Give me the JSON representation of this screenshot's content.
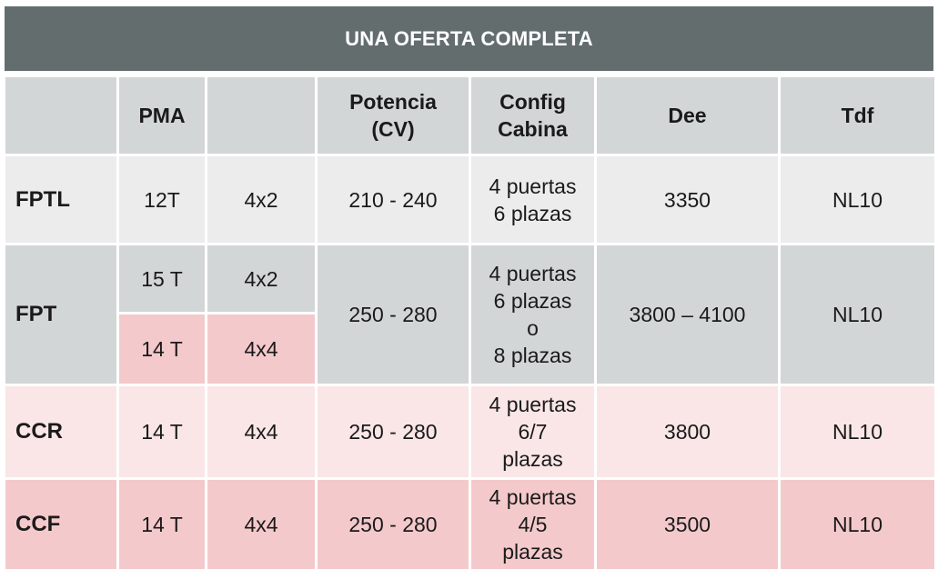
{
  "title": "UNA OFERTA COMPLETA",
  "headers": {
    "blank": "",
    "pma": "PMA",
    "traction": "",
    "potencia_line1": "Potencia",
    "potencia_line2": "(CV)",
    "config_line1": "Config",
    "config_line2": "Cabina",
    "dee": "Dee",
    "tdf": "Tdf"
  },
  "rows": {
    "fptl": {
      "name": "FPTL",
      "pma": "12T",
      "traction": "4x2",
      "potencia": "210 - 240",
      "config": [
        "4 puertas",
        "6 plazas"
      ],
      "dee": "3350",
      "tdf": "NL10"
    },
    "fpt": {
      "name": "FPT",
      "pma_a": "15 T",
      "traction_a": "4x2",
      "pma_b": "14 T",
      "traction_b": "4x4",
      "potencia": "250 - 280",
      "config": [
        "4 puertas",
        "6 plazas",
        "o",
        "8 plazas"
      ],
      "dee": "3800 – 4100",
      "tdf": "NL10"
    },
    "ccr": {
      "name": "CCR",
      "pma": "14 T",
      "traction": "4x4",
      "potencia": "250 - 280",
      "config": [
        "4 puertas",
        "6/7",
        "plazas"
      ],
      "dee": "3800",
      "tdf": "NL10"
    },
    "ccf": {
      "name": "CCF",
      "pma": "14 T",
      "traction": "4x4",
      "potencia": "250 - 280",
      "config": [
        "4 puertas",
        "4/5",
        "plazas"
      ],
      "dee": "3500",
      "tdf": "NL10"
    }
  },
  "colors": {
    "banner": "#636d6e",
    "header_gray": "#d3d6d6",
    "light_gray": "#ececec",
    "light_pink": "#fae6e6",
    "pink": "#f4c9cb"
  }
}
